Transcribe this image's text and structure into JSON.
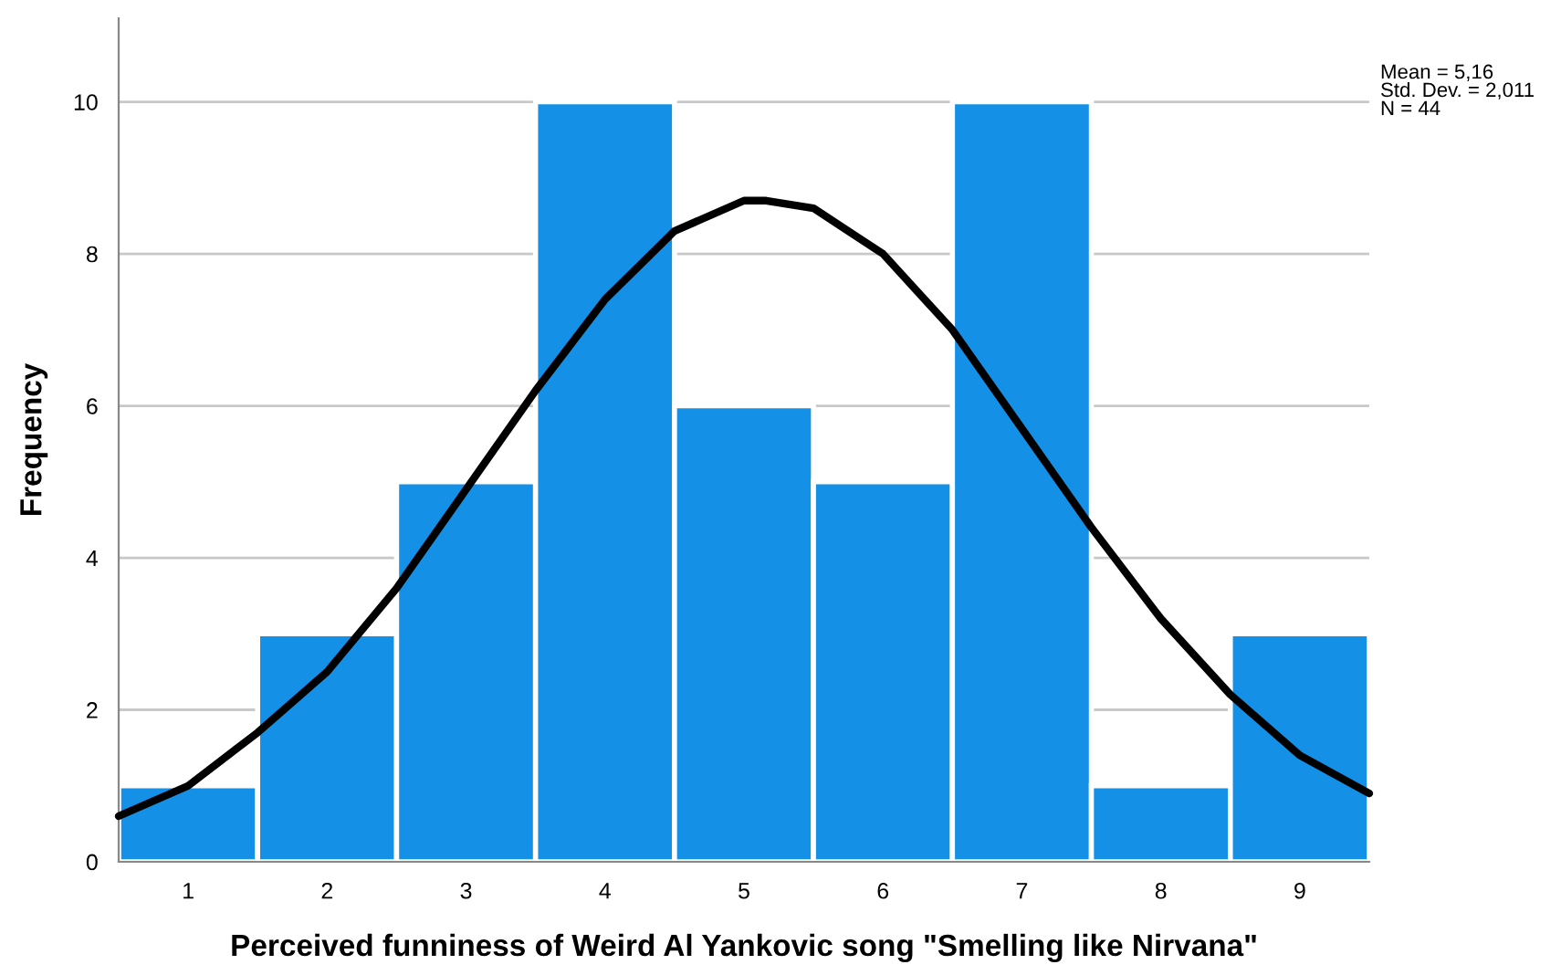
{
  "chart_data": {
    "type": "histogram",
    "xlabel": "Perceived funniness of Weird Al Yankovic song \"Smelling like Nirvana\"",
    "ylabel": "Frequency",
    "bins": [
      0.5,
      1.5,
      2.5,
      3.5,
      4.5,
      5.5,
      6.5,
      7.5,
      8.5,
      9.5
    ],
    "values": [
      1,
      3,
      5,
      10,
      6,
      5,
      10,
      1,
      3
    ],
    "color": "#1490e6",
    "series": [
      {
        "type": "line",
        "color": "#000000",
        "x": [
          0.5,
          1,
          1.5,
          2,
          2.5,
          3,
          3.5,
          4,
          4.5,
          5,
          5.16,
          5.5,
          6,
          6.5,
          7,
          7.5,
          8,
          8.5,
          9,
          9.5
        ],
        "values": [
          0.6,
          1.0,
          1.7,
          2.5,
          3.6,
          4.9,
          6.2,
          7.4,
          8.3,
          8.7,
          8.7,
          8.6,
          8.0,
          7.0,
          5.7,
          4.4,
          3.2,
          2.2,
          1.4,
          0.9
        ]
      }
    ],
    "xlim": [
      0.5,
      9.5
    ],
    "xticks": [
      1,
      2,
      3,
      4,
      5,
      6,
      7,
      8,
      9
    ],
    "ylim": [
      0,
      11.1
    ],
    "yticks": [
      0,
      2,
      4,
      6,
      8,
      10
    ],
    "grid": "y",
    "annotations": [
      "Mean = 5,16\nStd. Dev. = 2,011\nN = 44"
    ]
  }
}
